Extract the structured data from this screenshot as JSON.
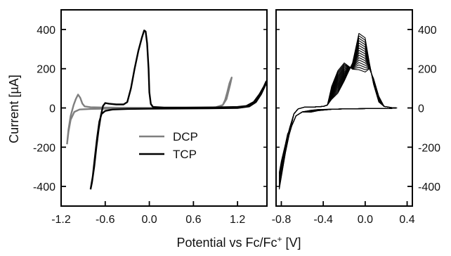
{
  "chart_data": {
    "type": "line",
    "ylabel": "Current [µA]",
    "xlabel_parts": {
      "prefix": "Potential vs Fc/Fc",
      "sup": "+",
      "suffix": " [V]"
    },
    "panels": [
      {
        "id": "left",
        "xlim": [
          -1.2,
          1.6
        ],
        "ylim": [
          -500,
          500
        ],
        "xticks": [
          -1.2,
          -0.6,
          0.0,
          0.6,
          1.2
        ],
        "xtick_labels": [
          "-1.2",
          "-0.6",
          "0.0",
          "0.6",
          "1.2"
        ],
        "yticks": [
          -400,
          -200,
          0,
          200,
          400
        ],
        "ytick_labels": [
          "-400",
          "-200",
          "0",
          "200",
          "400"
        ],
        "legend": {
          "placement": "center-bottom"
        },
        "series": [
          {
            "name": "DCP",
            "color": "#7f7f7f",
            "points": [
              [
                -1.12,
                -185
              ],
              [
                -1.1,
                -110
              ],
              [
                -1.07,
                -40
              ],
              [
                -1.03,
                15
              ],
              [
                -1.0,
                45
              ],
              [
                -0.97,
                68
              ],
              [
                -0.94,
                52
              ],
              [
                -0.91,
                22
              ],
              [
                -0.88,
                8
              ],
              [
                -0.8,
                4
              ],
              [
                -0.6,
                2
              ],
              [
                -0.3,
                1
              ],
              [
                0.0,
                0
              ],
              [
                0.4,
                0
              ],
              [
                0.8,
                1
              ],
              [
                0.96,
                5
              ],
              [
                1.0,
                15
              ],
              [
                1.03,
                40
              ],
              [
                1.06,
                80
              ],
              [
                1.09,
                125
              ],
              [
                1.12,
                155
              ],
              [
                1.1,
                120
              ],
              [
                1.05,
                45
              ],
              [
                1.0,
                15
              ],
              [
                0.9,
                3
              ],
              [
                0.6,
                0
              ],
              [
                0.2,
                -1
              ],
              [
                -0.2,
                -2
              ],
              [
                -0.5,
                -3
              ],
              [
                -0.8,
                -5
              ],
              [
                -0.95,
                -8
              ],
              [
                -1.02,
                -20
              ],
              [
                -1.07,
                -60
              ],
              [
                -1.1,
                -120
              ],
              [
                -1.12,
                -185
              ]
            ]
          },
          {
            "name": "TCP",
            "color": "#000000",
            "points": [
              [
                -0.8,
                -415
              ],
              [
                -0.78,
                -380
              ],
              [
                -0.75,
                -300
              ],
              [
                -0.72,
                -200
              ],
              [
                -0.69,
                -110
              ],
              [
                -0.66,
                -40
              ],
              [
                -0.63,
                10
              ],
              [
                -0.6,
                25
              ],
              [
                -0.55,
                22
              ],
              [
                -0.45,
                18
              ],
              [
                -0.35,
                18
              ],
              [
                -0.3,
                30
              ],
              [
                -0.25,
                100
              ],
              [
                -0.2,
                200
              ],
              [
                -0.15,
                290
              ],
              [
                -0.1,
                360
              ],
              [
                -0.07,
                395
              ],
              [
                -0.05,
                390
              ],
              [
                -0.03,
                330
              ],
              [
                -0.01,
                200
              ],
              [
                0.0,
                80
              ],
              [
                0.02,
                20
              ],
              [
                0.05,
                5
              ],
              [
                0.2,
                2
              ],
              [
                0.5,
                2
              ],
              [
                0.9,
                3
              ],
              [
                1.2,
                5
              ],
              [
                1.32,
                10
              ],
              [
                1.42,
                30
              ],
              [
                1.5,
                70
              ],
              [
                1.56,
                110
              ],
              [
                1.59,
                135
              ],
              [
                1.58,
                118
              ],
              [
                1.52,
                70
              ],
              [
                1.45,
                30
              ],
              [
                1.36,
                8
              ],
              [
                1.2,
                0
              ],
              [
                0.8,
                -2
              ],
              [
                0.4,
                -3
              ],
              [
                0.0,
                -4
              ],
              [
                -0.3,
                -5
              ],
              [
                -0.5,
                -8
              ],
              [
                -0.6,
                -15
              ],
              [
                -0.65,
                -30
              ],
              [
                -0.68,
                -70
              ],
              [
                -0.71,
                -150
              ],
              [
                -0.74,
                -250
              ],
              [
                -0.77,
                -350
              ],
              [
                -0.8,
                -415
              ]
            ]
          }
        ]
      },
      {
        "id": "right",
        "xlim": [
          -0.85,
          0.45
        ],
        "ylim": [
          -500,
          500
        ],
        "xticks": [
          -0.8,
          -0.4,
          0.0,
          0.4
        ],
        "xtick_labels": [
          "-0.8",
          "-0.4",
          "0.0",
          "0.4"
        ],
        "yticks": [
          -400,
          -200,
          0,
          200,
          400
        ],
        "ytick_labels": [
          "-400",
          "-200",
          "0",
          "200",
          "400"
        ],
        "y_axis_side": "right",
        "cycles": {
          "count": 16,
          "peak_first": 380,
          "peak_last": 195,
          "shoulder_first": 80,
          "shoulder_last": 200,
          "tail_first": -415,
          "tail_last": -330
        }
      }
    ]
  }
}
